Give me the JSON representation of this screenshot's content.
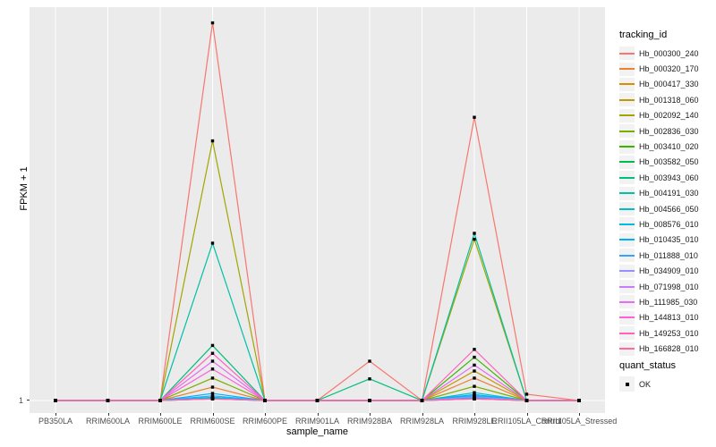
{
  "figure": {
    "y_axis_label": "FPKM + 1",
    "x_axis_label": "sample_name",
    "y_tick_label": "1",
    "legend_title": "tracking_id",
    "legend2_title": "quant_status",
    "legend2_items": [
      {
        "label": "OK",
        "marker": "black-square"
      }
    ],
    "panel_background": "#EBEBEB",
    "gridline_color": "#FFFFFF",
    "tick_label_color": "#4D4D4D",
    "point_color": "#000000"
  },
  "chart_data": {
    "type": "line",
    "title": "",
    "xlabel": "sample_name",
    "ylabel": "FPKM + 1",
    "y_axis_ticks": [
      "1"
    ],
    "values_unit": "fraction of panel height above the y=1 baseline (only tick '1' is labeled on axis)",
    "ylim_note": "baseline value 1 at bottom gridline; peak of Hb_000300_240 at RRIM600SE reaches ~0.96 of panel height",
    "grid": "white vertical gridline at each category; white horizontal gridline at y=1",
    "legend_position": "right",
    "point_marker": "small black square (quant_status = OK) at every sample for every series",
    "categories": [
      "PB350LA",
      "RRIM600LA",
      "RRIM600LE",
      "RRIM600SE",
      "RRIM600PE",
      "RRIM901LA",
      "RRIM928BA",
      "RRIM928LA",
      "RRIM928LE",
      "RRII105LA_Control",
      "RRII105LA_Stressed"
    ],
    "series": [
      {
        "name": "Hb_000300_240",
        "color": "#F8766D",
        "values": [
          0,
          0,
          0,
          0.96,
          0,
          0,
          0.1,
          0,
          0.72,
          0.016,
          0
        ]
      },
      {
        "name": "Hb_000320_170",
        "color": "#EA8331",
        "values": [
          0,
          0,
          0,
          0.034,
          0,
          0,
          0,
          0,
          0.057,
          0,
          0
        ]
      },
      {
        "name": "Hb_000417_330",
        "color": "#D89000",
        "values": [
          0,
          0,
          0,
          0.006,
          0,
          0,
          0,
          0,
          0.006,
          0,
          0
        ]
      },
      {
        "name": "Hb_001318_060",
        "color": "#C09B00",
        "values": [
          0,
          0,
          0,
          0.006,
          0,
          0,
          0,
          0,
          0.075,
          0,
          0
        ]
      },
      {
        "name": "Hb_002092_140",
        "color": "#A3A500",
        "values": [
          0,
          0,
          0,
          0.66,
          0,
          0,
          0,
          0,
          0.41,
          0,
          0
        ]
      },
      {
        "name": "Hb_002836_030",
        "color": "#7CAE00",
        "values": [
          0,
          0,
          0,
          0.057,
          0,
          0,
          0,
          0,
          0.036,
          0,
          0
        ]
      },
      {
        "name": "Hb_003410_020",
        "color": "#39B600",
        "values": [
          0,
          0,
          0,
          0.006,
          0,
          0,
          0,
          0,
          0.11,
          0,
          0
        ]
      },
      {
        "name": "Hb_003582_050",
        "color": "#00BB4E",
        "values": [
          0,
          0,
          0,
          0.006,
          0,
          0,
          0,
          0,
          0.006,
          0,
          0
        ]
      },
      {
        "name": "Hb_003943_060",
        "color": "#00BF7D",
        "values": [
          0,
          0,
          0,
          0.14,
          0,
          0,
          0.055,
          0,
          0.006,
          0,
          0
        ]
      },
      {
        "name": "Hb_004191_030",
        "color": "#00C1A3",
        "values": [
          0,
          0,
          0,
          0.4,
          0,
          0,
          0,
          0,
          0.425,
          0,
          0
        ]
      },
      {
        "name": "Hb_004566_050",
        "color": "#00BFC4",
        "values": [
          0,
          0,
          0,
          0.008,
          0,
          0,
          0,
          0,
          0.02,
          0,
          0
        ]
      },
      {
        "name": "Hb_008576_010",
        "color": "#00BAE0",
        "values": [
          0,
          0,
          0,
          0.008,
          0,
          0,
          0,
          0,
          0.012,
          0,
          0
        ]
      },
      {
        "name": "Hb_010435_010",
        "color": "#00B0F6",
        "values": [
          0,
          0,
          0,
          0.018,
          0,
          0,
          0,
          0,
          0.015,
          0,
          0
        ]
      },
      {
        "name": "Hb_011888_010",
        "color": "#35A2FF",
        "values": [
          0,
          0,
          0,
          0.012,
          0,
          0,
          0,
          0,
          0.008,
          0,
          0
        ]
      },
      {
        "name": "Hb_034909_010",
        "color": "#9590FF",
        "values": [
          0,
          0,
          0,
          0.004,
          0,
          0,
          0,
          0,
          0.01,
          0,
          0
        ]
      },
      {
        "name": "Hb_071998_010",
        "color": "#C77CFF",
        "values": [
          0,
          0,
          0,
          0.004,
          0,
          0,
          0,
          0,
          0.004,
          0,
          0
        ]
      },
      {
        "name": "Hb_111985_030",
        "color": "#E76BF3",
        "values": [
          0,
          0,
          0,
          0.1,
          0,
          0,
          0,
          0,
          0.09,
          0,
          0
        ]
      },
      {
        "name": "Hb_144813_010",
        "color": "#FA62DB",
        "values": [
          0,
          0,
          0,
          0.08,
          0,
          0,
          0,
          0,
          0.004,
          0,
          0
        ]
      },
      {
        "name": "Hb_149253_010",
        "color": "#FF62BC",
        "values": [
          0,
          0,
          0,
          0.12,
          0,
          0,
          0,
          0,
          0.13,
          0,
          0
        ]
      },
      {
        "name": "Hb_166828_010",
        "color": "#FF6A98",
        "values": [
          0,
          0,
          0,
          0.004,
          0,
          0,
          0,
          0,
          0.004,
          0,
          0
        ]
      }
    ]
  }
}
